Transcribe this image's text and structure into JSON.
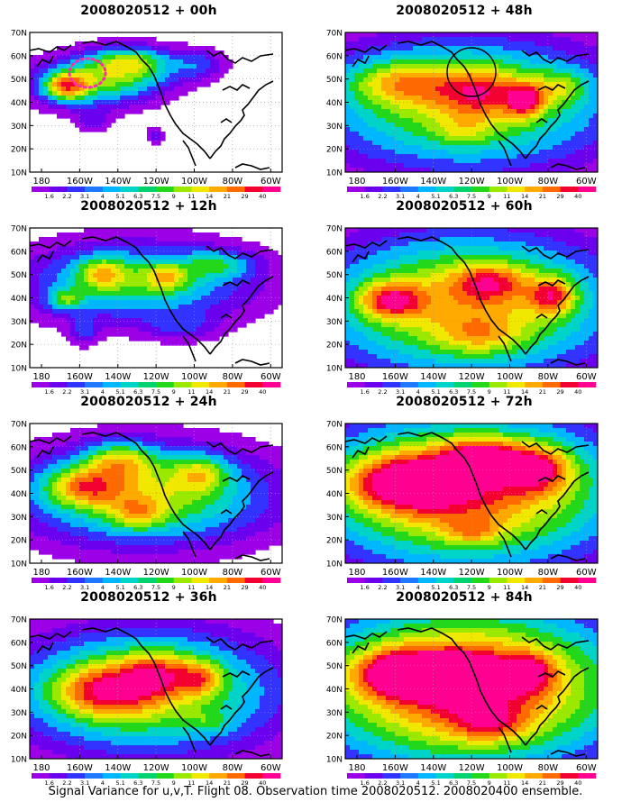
{
  "panels": [
    {
      "title": "2008020512 + 00h",
      "lead": "00h",
      "annotation": "dotted-ellipse"
    },
    {
      "title": "2008020512 + 48h",
      "lead": "48h",
      "annotation": "circle"
    },
    {
      "title": "2008020512 + 12h",
      "lead": "12h",
      "annotation": "none"
    },
    {
      "title": "2008020512 + 60h",
      "lead": "60h",
      "annotation": "none"
    },
    {
      "title": "2008020512 + 24h",
      "lead": "24h",
      "annotation": "none"
    },
    {
      "title": "2008020512 + 72h",
      "lead": "72h",
      "annotation": "none"
    },
    {
      "title": "2008020512 + 36h",
      "lead": "36h",
      "annotation": "none"
    },
    {
      "title": "2008020512 + 84h",
      "lead": "84h",
      "annotation": "none"
    }
  ],
  "lat_labels": [
    "70N",
    "60N",
    "50N",
    "40N",
    "30N",
    "20N",
    "10N"
  ],
  "lon_labels": [
    "180",
    "160W",
    "140W",
    "120W",
    "100W",
    "80W",
    "60W"
  ],
  "colorbar": {
    "levels": [
      "1.6",
      "2.2",
      "3.1",
      "4",
      "5.1",
      "6.3",
      "7.5",
      "9",
      "11",
      "14",
      "21",
      "29",
      "40"
    ],
    "colors": [
      "#9c00e6",
      "#6a00ee",
      "#3333ff",
      "#1f78ff",
      "#00b7ff",
      "#00d4c8",
      "#00d26e",
      "#23d81a",
      "#9be800",
      "#f0e800",
      "#ffaa00",
      "#ff6a00",
      "#f2002f",
      "#ff0090"
    ]
  },
  "footer": "Signal Variance for u,v,T. Flight 08. Observation time 2008020512. 2008020400 ensemble."
}
